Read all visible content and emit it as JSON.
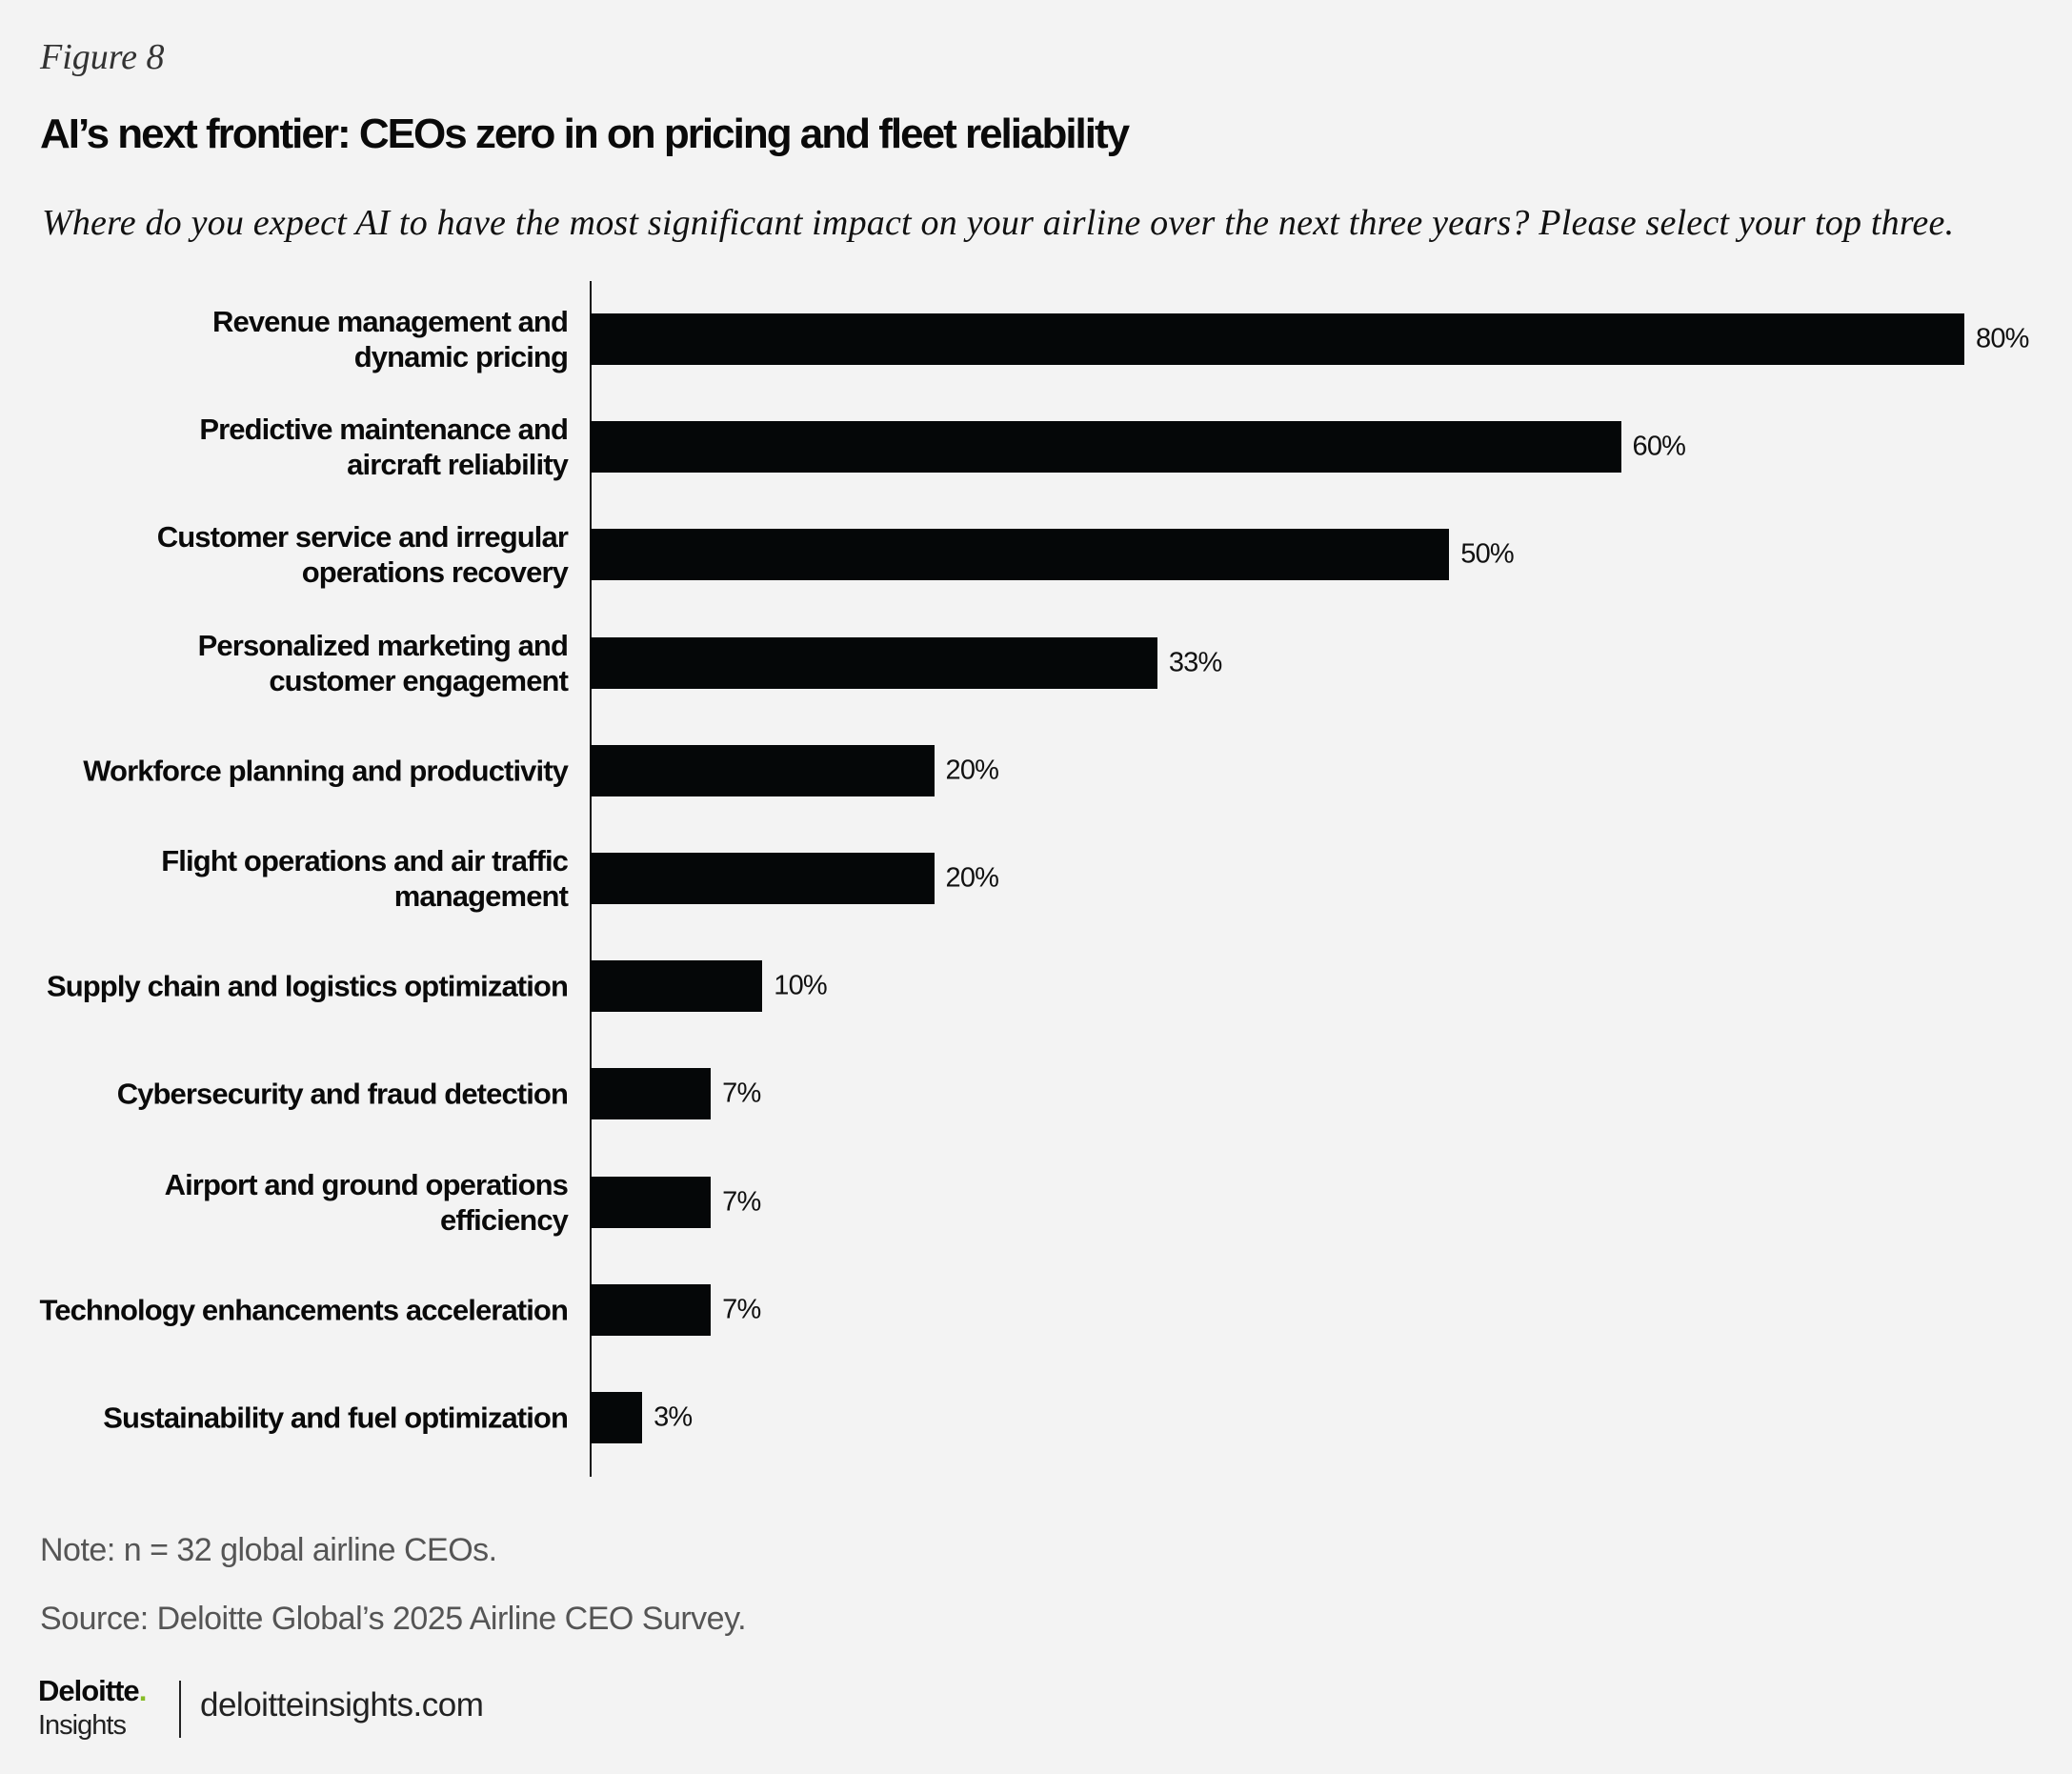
{
  "figure_label": "Figure 8",
  "chart_data": {
    "type": "bar",
    "orientation": "horizontal",
    "title": "AI’s next frontier: CEOs zero in on pricing and fleet reliability",
    "subtitle": "Where do you expect AI to have the most significant impact on your airline over the next three years? Please select your top three.",
    "categories": [
      "Revenue management and dynamic pricing",
      "Predictive maintenance and aircraft reliability",
      "Customer service and irregular operations recovery",
      "Personalized marketing and customer engagement",
      "Workforce planning and productivity",
      "Flight operations and air traffic management",
      "Supply chain and logistics optimization",
      "Cybersecurity and fraud detection",
      "Airport and ground operations efficiency",
      "Technology enhancements acceleration",
      "Sustainability and fuel optimization"
    ],
    "values": [
      80,
      60,
      50,
      33,
      20,
      20,
      10,
      7,
      7,
      7,
      3
    ],
    "value_labels": [
      "80%",
      "60%",
      "50%",
      "33%",
      "20%",
      "20%",
      "10%",
      "7%",
      "7%",
      "7%",
      "3%"
    ],
    "unit": "%",
    "grid": false,
    "legend": "none",
    "bar_color": "#050708"
  },
  "footer": {
    "note": "Note: n = 32 global airline CEOs.",
    "source": "Source: Deloitte Global’s 2025 Airline CEO Survey.",
    "logo_brand": "Deloitte",
    "logo_sub": "Insights",
    "logo_dot": ".",
    "logo_dot_color": "#86bc25",
    "site": "deloitteinsights.com"
  }
}
